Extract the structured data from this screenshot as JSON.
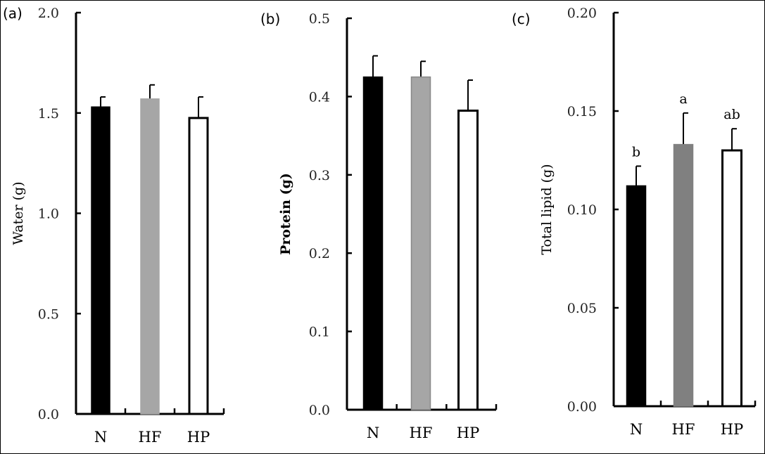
{
  "chart_data": [
    {
      "type": "bar",
      "panel_label": "(a)",
      "ylabel": "Water (g)",
      "ylabel_bold": false,
      "categories": [
        "N",
        "HF",
        "HP"
      ],
      "values": [
        1.53,
        1.57,
        1.475
      ],
      "error_upper": [
        1.58,
        1.64,
        1.58
      ],
      "colors": [
        "#000000",
        "#a6a6a6",
        "#ffffff"
      ],
      "ylim": [
        0,
        2.0
      ],
      "yticks": [
        "0.0",
        "0.5",
        "1.0",
        "1.5",
        "2.0"
      ],
      "significance": [],
      "grid": false
    },
    {
      "type": "bar",
      "panel_label": "(b)",
      "ylabel": "Protein (g)",
      "ylabel_bold": true,
      "categories": [
        "N",
        "HF",
        "HP"
      ],
      "values": [
        0.425,
        0.425,
        0.382
      ],
      "error_upper": [
        0.452,
        0.445,
        0.421
      ],
      "colors": [
        "#000000",
        "#a6a6a6",
        "#ffffff"
      ],
      "ylim": [
        0,
        0.5
      ],
      "yticks": [
        "0.0",
        "0.1",
        "0.2",
        "0.3",
        "0.4",
        "0.5"
      ],
      "significance": [],
      "grid": false
    },
    {
      "type": "bar",
      "panel_label": "(c)",
      "ylabel": "Total lipid (g)",
      "ylabel_bold": false,
      "categories": [
        "N",
        "HF",
        "HP"
      ],
      "values": [
        0.112,
        0.133,
        0.13
      ],
      "error_upper": [
        0.122,
        0.149,
        0.141
      ],
      "colors": [
        "#000000",
        "#808080",
        "#ffffff"
      ],
      "ylim": [
        0,
        0.2
      ],
      "yticks": [
        "0.00",
        "0.05",
        "0.10",
        "0.15",
        "0.20"
      ],
      "significance": [
        "b",
        "a",
        "ab"
      ],
      "grid": false
    }
  ]
}
